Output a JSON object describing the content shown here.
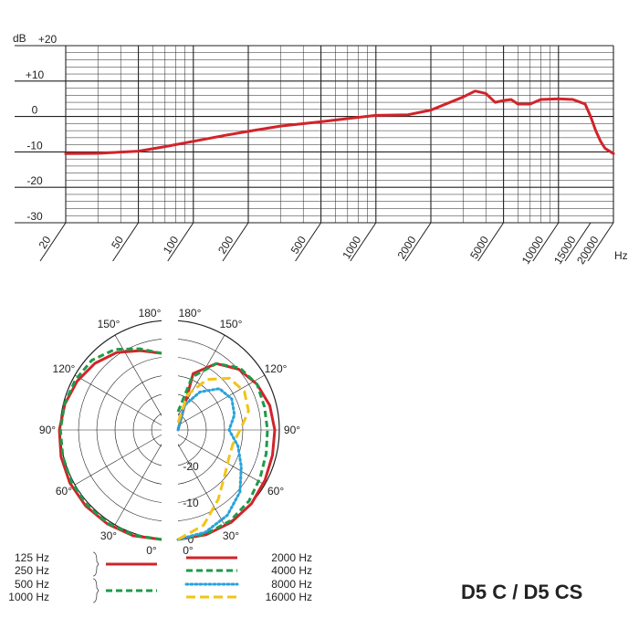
{
  "model_title": "D5 C / D5 CS",
  "chart_data": [
    {
      "type": "line",
      "xscale": "log",
      "xlim": [
        20,
        20000
      ],
      "ylim": [
        -30,
        20
      ],
      "ylabel_unit": "dB",
      "xlabel_unit": "Hz",
      "y_ticks": [
        {
          "value": 20,
          "label": "+20"
        },
        {
          "value": 10,
          "label": "+10"
        },
        {
          "value": 0,
          "label": "0"
        },
        {
          "value": -10,
          "label": "-10"
        },
        {
          "value": -20,
          "label": "-20"
        },
        {
          "value": -30,
          "label": "-30"
        }
      ],
      "x_tick_labels": [
        {
          "value": 20,
          "label": "20"
        },
        {
          "value": 50,
          "label": "50"
        },
        {
          "value": 100,
          "label": "100"
        },
        {
          "value": 200,
          "label": "200"
        },
        {
          "value": 500,
          "label": "500"
        },
        {
          "value": 1000,
          "label": "1000"
        },
        {
          "value": 2000,
          "label": "2000"
        },
        {
          "value": 5000,
          "label": "5000"
        },
        {
          "value": 10000,
          "label": "10000"
        },
        {
          "value": 15000,
          "label": "15000"
        },
        {
          "value": 20000,
          "label": "20000"
        }
      ],
      "grid": true,
      "series": [
        {
          "color": "#d2232a",
          "x": [
            20,
            30,
            50,
            70,
            100,
            150,
            200,
            300,
            500,
            700,
            1000,
            1500,
            2000,
            3000,
            3500,
            4000,
            4500,
            5000,
            5500,
            6000,
            7000,
            8000,
            9000,
            10000,
            12000,
            14000,
            15000,
            16000,
            17000,
            18000,
            20000
          ],
          "y": [
            -10.5,
            -10.4,
            -9.8,
            -8.5,
            -7,
            -5.3,
            -4.2,
            -2.7,
            -1.5,
            -0.6,
            0.3,
            0.5,
            1.8,
            5.5,
            7.2,
            6.5,
            4,
            4.5,
            4.8,
            3.5,
            3.5,
            4.8,
            4.9,
            5,
            4.8,
            3.5,
            0,
            -4,
            -7,
            -9,
            -10.5
          ]
        }
      ]
    },
    {
      "type": "polar",
      "scale": "dB",
      "rlim": [
        -30,
        0
      ],
      "radial_labels": [
        "-20",
        "-10",
        "0"
      ],
      "angle_labels": {
        "left": [
          "0°",
          "30°",
          "60°",
          "90°",
          "120°",
          "150°",
          "180°"
        ],
        "right": [
          "0°",
          "30°",
          "60°",
          "90°",
          "120°",
          "150°",
          "180°"
        ]
      },
      "grid": true,
      "series": [
        {
          "group": "left",
          "frequencies": [
            "125 Hz",
            "250 Hz"
          ],
          "style": "solid",
          "color": "#d2232a",
          "angles": [
            0,
            15,
            30,
            45,
            60,
            75,
            90,
            105,
            120,
            135,
            150,
            165,
            180
          ],
          "db": [
            0,
            0,
            -0.3,
            -0.6,
            -1,
            -1.5,
            -2,
            -2.6,
            -3.3,
            -4.2,
            -5.5,
            -7.5,
            -9
          ]
        },
        {
          "group": "left",
          "frequencies": [
            "500 Hz",
            "1000 Hz"
          ],
          "style": "dash",
          "color": "#1e9a48",
          "angles": [
            0,
            15,
            30,
            45,
            60,
            75,
            90,
            105,
            120,
            135,
            150,
            165,
            180
          ],
          "db": [
            0,
            -0.2,
            -0.5,
            -1,
            -1.5,
            -2,
            -2.3,
            -2.5,
            -2.7,
            -3,
            -4.5,
            -7,
            -9
          ]
        },
        {
          "group": "right",
          "frequencies": [
            "2000 Hz"
          ],
          "style": "solid",
          "color": "#d2232a",
          "angles": [
            0,
            15,
            30,
            45,
            60,
            75,
            90,
            105,
            120,
            135,
            150,
            165,
            180
          ],
          "db": [
            0,
            -0.3,
            -0.8,
            -1.5,
            -2.5,
            -3.2,
            -3.5,
            -4,
            -5,
            -6.5,
            -9,
            -14,
            -30
          ]
        },
        {
          "group": "right",
          "frequencies": [
            "4000 Hz"
          ],
          "style": "dash",
          "color": "#1e9a48",
          "angles": [
            0,
            15,
            30,
            45,
            60,
            75,
            90,
            105,
            120,
            135,
            150,
            165,
            180
          ],
          "db": [
            0,
            -0.5,
            -1.3,
            -2.5,
            -4,
            -5,
            -5.5,
            -5.5,
            -5,
            -6,
            -9,
            -15,
            -25
          ]
        },
        {
          "group": "right",
          "frequencies": [
            "8000 Hz"
          ],
          "style": "dot",
          "color": "#29a3dc",
          "angles": [
            0,
            15,
            30,
            45,
            60,
            75,
            90,
            105,
            120,
            135,
            150,
            165,
            180
          ],
          "db": [
            0,
            -1,
            -3,
            -6,
            -10,
            -13,
            -16,
            -14,
            -13,
            -14,
            -18,
            -23,
            -30
          ]
        },
        {
          "group": "right",
          "frequencies": [
            "16000 Hz"
          ],
          "style": "longdash",
          "color": "#f3c318",
          "angles": [
            0,
            15,
            30,
            45,
            60,
            75,
            90,
            105,
            120,
            135,
            150,
            165,
            180
          ],
          "db": [
            0,
            -3,
            -8,
            -12,
            -14,
            -14.5,
            -13,
            -10,
            -9,
            -10,
            -14,
            -20,
            -28
          ]
        }
      ]
    }
  ]
}
